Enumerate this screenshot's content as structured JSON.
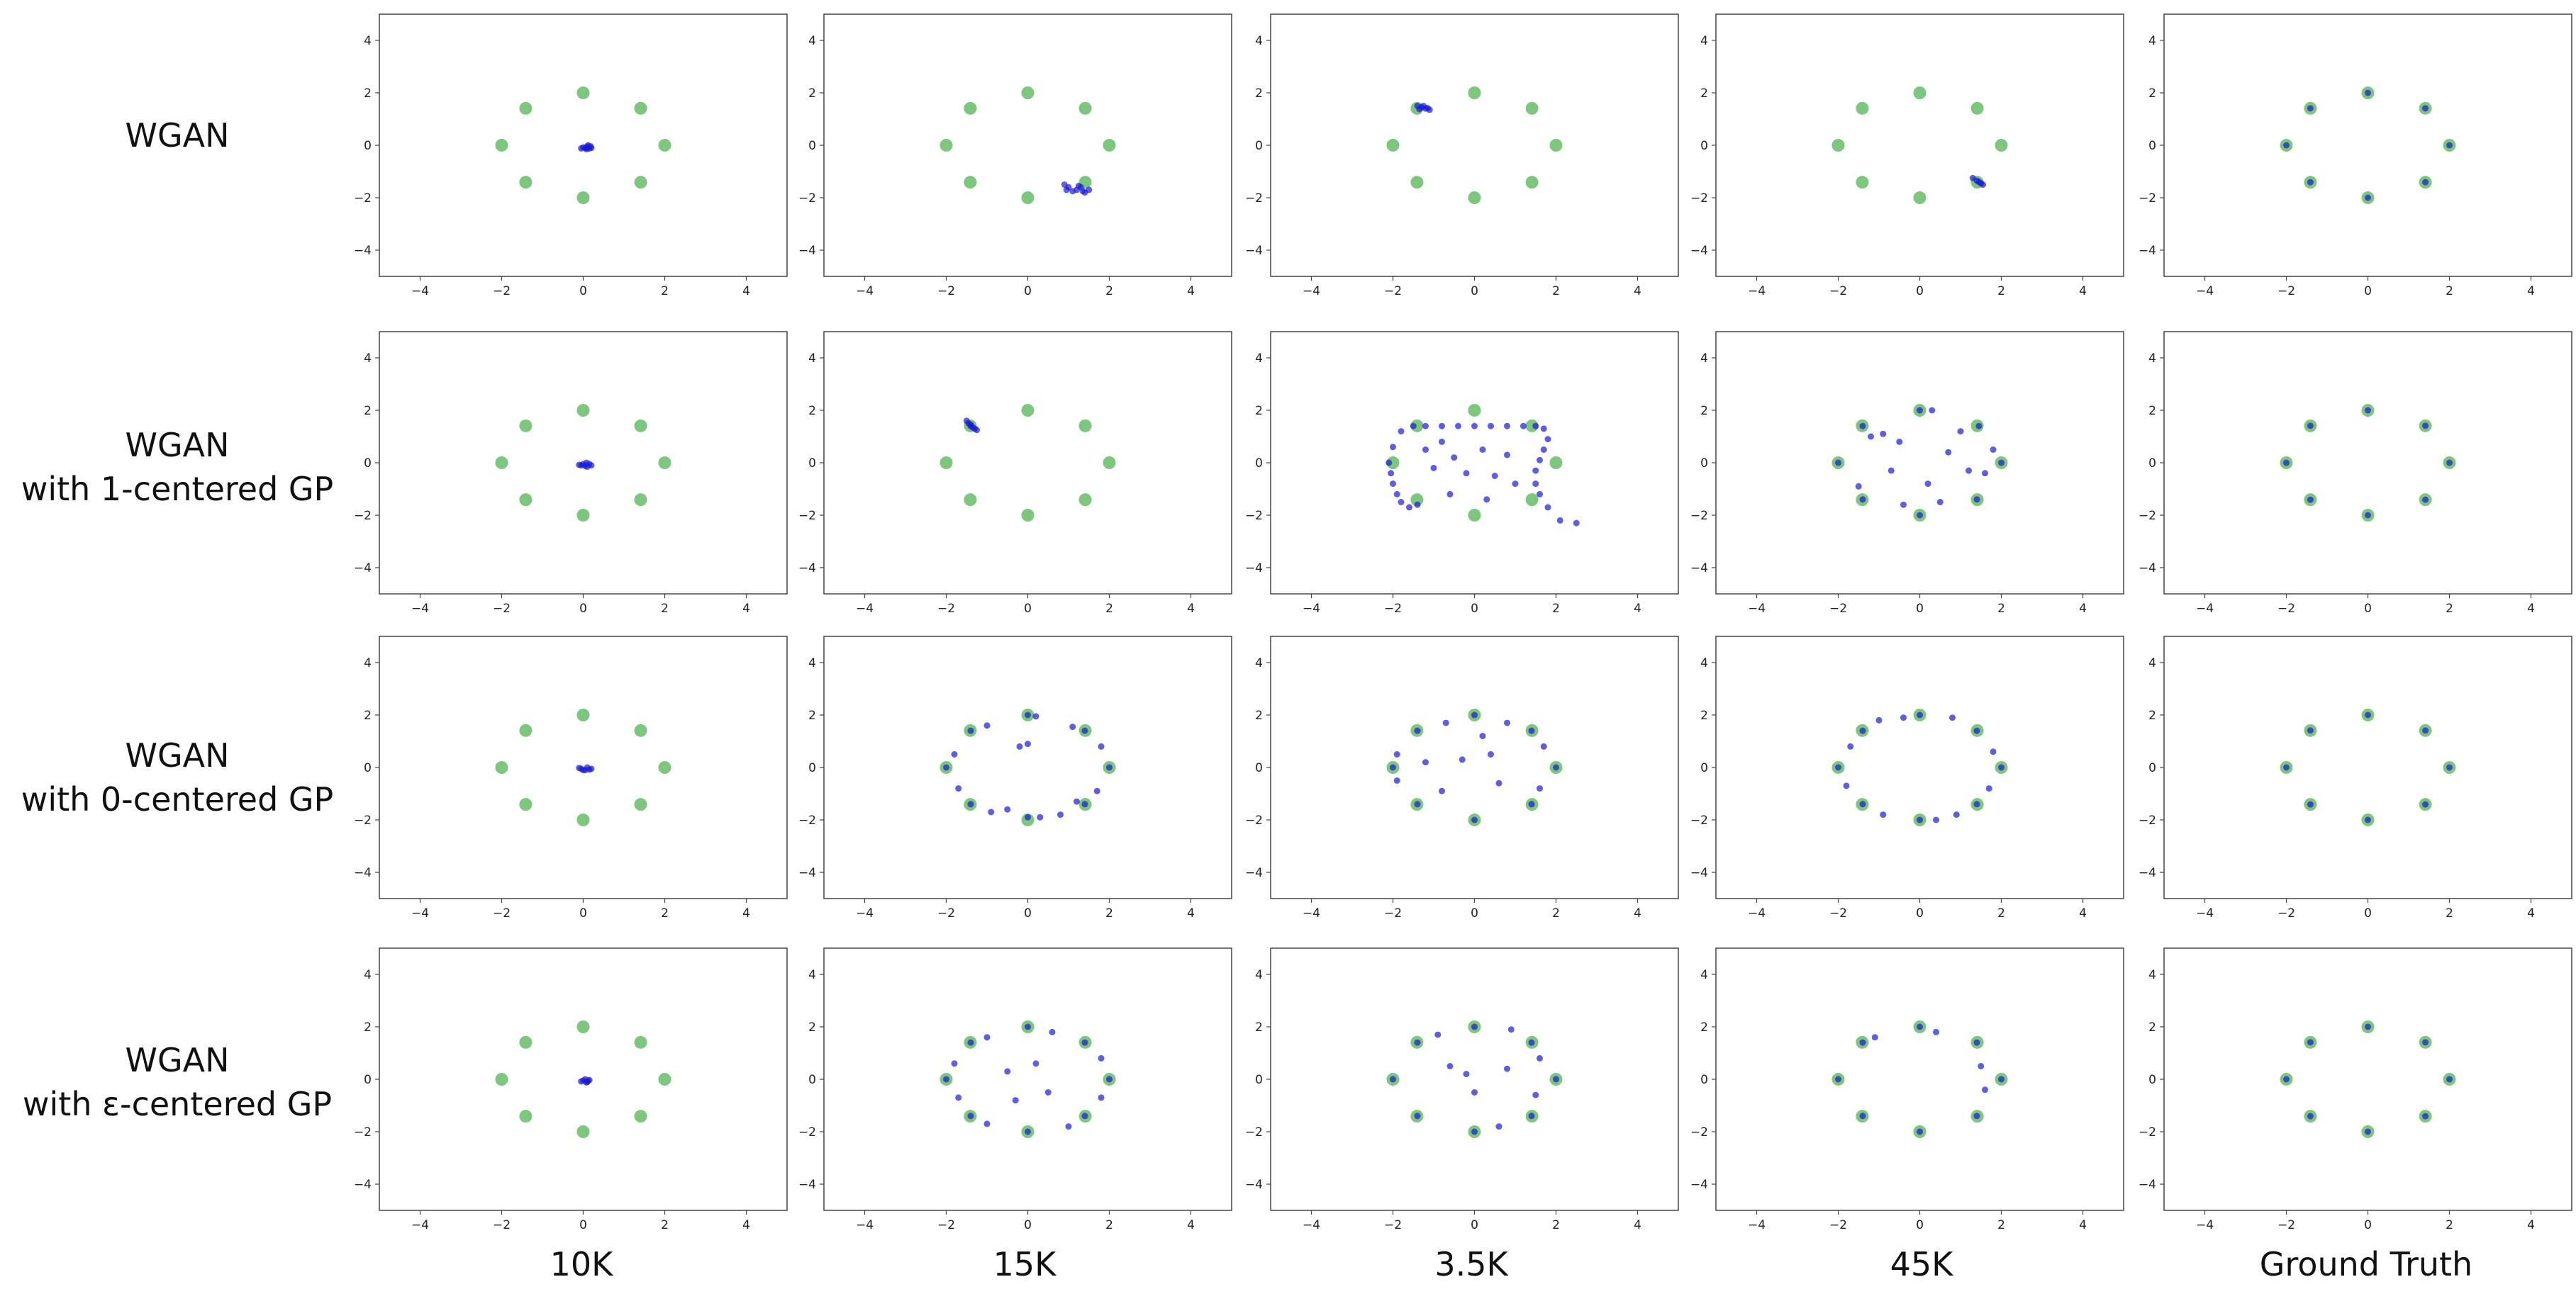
{
  "row_labels": [
    {
      "line1": "WGAN",
      "line2": ""
    },
    {
      "line1": "WGAN",
      "line2": "with 1-centered GP"
    },
    {
      "line1": "WGAN",
      "line2": "with 0-centered GP"
    },
    {
      "line1": "WGAN",
      "line2": "with ε-centered GP"
    }
  ],
  "column_labels": [
    "10K",
    "15K",
    "3.5K",
    "45K",
    "Ground Truth"
  ],
  "colors": {
    "real": "#5cb85c",
    "generated": "#1a1ad6",
    "axes": "#444444"
  },
  "chart_data": {
    "type": "scatter",
    "grid": false,
    "xlim": [
      -5,
      5
    ],
    "ylim": [
      -5,
      5
    ],
    "xticks": [
      -4,
      -2,
      0,
      2,
      4
    ],
    "yticks": [
      -4,
      -2,
      0,
      2,
      4
    ],
    "real_modes": [
      [
        2,
        0
      ],
      [
        1.41,
        1.41
      ],
      [
        0,
        2
      ],
      [
        -1.41,
        1.41
      ],
      [
        -2,
        0
      ],
      [
        -1.41,
        -1.41
      ],
      [
        0,
        -2
      ],
      [
        1.41,
        -1.41
      ]
    ],
    "panels": [
      [
        {
          "generated": [
            [
              0.05,
              -0.1
            ],
            [
              0.1,
              -0.05
            ],
            [
              0.15,
              -0.12
            ],
            [
              0,
              -0.08
            ],
            [
              0.2,
              -0.1
            ],
            [
              0.08,
              -0.15
            ],
            [
              0.12,
              0
            ],
            [
              -0.05,
              -0.12
            ],
            [
              0.18,
              -0.04
            ],
            [
              0.1,
              -0.1
            ]
          ]
        },
        {
          "generated": [
            [
              0.9,
              -1.5
            ],
            [
              1.0,
              -1.6
            ],
            [
              1.2,
              -1.7
            ],
            [
              1.3,
              -1.6
            ],
            [
              1.1,
              -1.75
            ],
            [
              1.4,
              -1.8
            ],
            [
              1.5,
              -1.7
            ],
            [
              0.95,
              -1.7
            ],
            [
              1.25,
              -1.55
            ],
            [
              1.35,
              -1.75
            ]
          ]
        },
        {
          "generated": [
            [
              -1.4,
              1.5
            ],
            [
              -1.3,
              1.45
            ],
            [
              -1.2,
              1.4
            ],
            [
              -1.1,
              1.35
            ],
            [
              -1.35,
              1.38
            ],
            [
              -1.25,
              1.5
            ],
            [
              -1.15,
              1.42
            ]
          ]
        },
        {
          "generated": [
            [
              1.3,
              -1.25
            ],
            [
              1.4,
              -1.35
            ],
            [
              1.5,
              -1.45
            ],
            [
              1.55,
              -1.5
            ],
            [
              1.45,
              -1.4
            ]
          ]
        },
        {
          "generated": [
            [
              2,
              0
            ],
            [
              1.41,
              1.41
            ],
            [
              0,
              2
            ],
            [
              -1.41,
              1.41
            ],
            [
              -2,
              0
            ],
            [
              -1.41,
              -1.41
            ],
            [
              0,
              -2
            ],
            [
              1.41,
              -1.41
            ]
          ]
        }
      ],
      [
        {
          "generated": [
            [
              -0.05,
              -0.1
            ],
            [
              0.05,
              -0.12
            ],
            [
              0.15,
              -0.05
            ],
            [
              0,
              -0.05
            ],
            [
              0.1,
              -0.15
            ],
            [
              -0.1,
              -0.08
            ],
            [
              0.2,
              -0.1
            ],
            [
              0.08,
              0
            ]
          ]
        },
        {
          "generated": [
            [
              -1.5,
              1.6
            ],
            [
              -1.45,
              1.5
            ],
            [
              -1.4,
              1.4
            ],
            [
              -1.35,
              1.35
            ],
            [
              -1.3,
              1.3
            ],
            [
              -1.25,
              1.25
            ],
            [
              -1.4,
              1.45
            ]
          ]
        },
        {
          "generated": [
            [
              -1.8,
              1.2
            ],
            [
              -1.5,
              1.4
            ],
            [
              -1.2,
              1.4
            ],
            [
              -0.8,
              1.4
            ],
            [
              -0.4,
              1.4
            ],
            [
              0,
              1.4
            ],
            [
              0.4,
              1.4
            ],
            [
              0.8,
              1.4
            ],
            [
              1.2,
              1.4
            ],
            [
              1.5,
              1.4
            ],
            [
              1.7,
              1.3
            ],
            [
              1.8,
              0.9
            ],
            [
              1.7,
              0.5
            ],
            [
              1.6,
              0.1
            ],
            [
              1.5,
              -0.3
            ],
            [
              1.5,
              -0.8
            ],
            [
              1.6,
              -1.2
            ],
            [
              1.8,
              -1.7
            ],
            [
              2.1,
              -2.2
            ],
            [
              2.5,
              -2.3
            ],
            [
              -2.0,
              0.6
            ],
            [
              -2.1,
              0
            ],
            [
              -2.05,
              -0.4
            ],
            [
              -2.0,
              -0.8
            ],
            [
              -1.9,
              -1.2
            ],
            [
              -1.8,
              -1.5
            ],
            [
              -1.6,
              -1.7
            ],
            [
              -1.4,
              -1.6
            ],
            [
              -1.2,
              0.5
            ],
            [
              -0.8,
              0.8
            ],
            [
              -0.5,
              0.2
            ],
            [
              -0.2,
              -0.4
            ],
            [
              0.2,
              0.5
            ],
            [
              0.5,
              -0.5
            ],
            [
              0.8,
              0.3
            ],
            [
              -0.6,
              -1.2
            ],
            [
              0.3,
              -1.4
            ],
            [
              1.0,
              -0.8
            ],
            [
              -1.0,
              -0.2
            ]
          ]
        },
        {
          "generated": [
            [
              2,
              0
            ],
            [
              1.45,
              1.4
            ],
            [
              0,
              2
            ],
            [
              -1.4,
              1.4
            ],
            [
              -2,
              0
            ],
            [
              -1.4,
              -1.4
            ],
            [
              0,
              -2
            ],
            [
              1.4,
              -1.4
            ],
            [
              0.3,
              2.0
            ],
            [
              1.0,
              1.2
            ],
            [
              -0.9,
              1.1
            ],
            [
              1.8,
              0.5
            ],
            [
              1.6,
              -0.4
            ],
            [
              0.5,
              -1.5
            ],
            [
              -0.4,
              -1.6
            ],
            [
              -1.5,
              -0.9
            ],
            [
              -1.2,
              1.0
            ],
            [
              -0.5,
              0.8
            ],
            [
              0.7,
              0.4
            ],
            [
              0.2,
              -0.8
            ],
            [
              -0.7,
              -0.3
            ],
            [
              1.2,
              -0.3
            ]
          ]
        },
        {
          "generated": [
            [
              2,
              0
            ],
            [
              1.41,
              1.41
            ],
            [
              0,
              2
            ],
            [
              -1.41,
              1.41
            ],
            [
              -2,
              0
            ],
            [
              -1.41,
              -1.41
            ],
            [
              0,
              -2
            ],
            [
              1.41,
              -1.41
            ]
          ]
        }
      ],
      [
        {
          "generated": [
            [
              -0.05,
              -0.05
            ],
            [
              0.05,
              -0.1
            ],
            [
              0.1,
              0
            ],
            [
              0.15,
              -0.08
            ],
            [
              -0.1,
              -0.02
            ],
            [
              0,
              -0.1
            ],
            [
              0.2,
              -0.05
            ]
          ]
        },
        {
          "generated": [
            [
              2,
              0
            ],
            [
              1.4,
              1.4
            ],
            [
              0,
              2
            ],
            [
              -1.4,
              1.4
            ],
            [
              -2,
              0
            ],
            [
              -1.4,
              -1.4
            ],
            [
              0,
              -1.9
            ],
            [
              1.4,
              -1.4
            ],
            [
              0.2,
              1.95
            ],
            [
              1.1,
              1.55
            ],
            [
              -1.0,
              1.6
            ],
            [
              -1.8,
              0.5
            ],
            [
              -1.7,
              -0.8
            ],
            [
              -0.9,
              -1.7
            ],
            [
              0.8,
              -1.8
            ],
            [
              1.7,
              -0.9
            ],
            [
              1.8,
              0.8
            ],
            [
              -0.2,
              0.8
            ],
            [
              0,
              0.9
            ],
            [
              -0.5,
              -1.6
            ],
            [
              0.3,
              -1.9
            ],
            [
              1.2,
              -1.3
            ]
          ]
        },
        {
          "generated": [
            [
              2,
              0
            ],
            [
              1.4,
              1.4
            ],
            [
              0,
              2
            ],
            [
              -1.4,
              1.4
            ],
            [
              -2,
              0
            ],
            [
              -1.4,
              -1.4
            ],
            [
              0,
              -2
            ],
            [
              1.4,
              -1.4
            ],
            [
              0.8,
              1.7
            ],
            [
              -0.7,
              1.7
            ],
            [
              -1.9,
              0.5
            ],
            [
              -1.9,
              -0.5
            ],
            [
              1.7,
              0.8
            ],
            [
              1.6,
              -0.8
            ],
            [
              0.4,
              0.5
            ],
            [
              -0.3,
              0.3
            ],
            [
              0.6,
              -0.6
            ],
            [
              -0.8,
              -0.9
            ],
            [
              0.2,
              1.2
            ],
            [
              -1.2,
              0.2
            ]
          ]
        },
        {
          "generated": [
            [
              2,
              0
            ],
            [
              1.4,
              1.4
            ],
            [
              0,
              2
            ],
            [
              -1.4,
              1.4
            ],
            [
              -2,
              0
            ],
            [
              -1.4,
              -1.4
            ],
            [
              0,
              -2
            ],
            [
              1.4,
              -1.4
            ],
            [
              -1.0,
              1.8
            ],
            [
              0.8,
              1.9
            ],
            [
              1.8,
              0.6
            ],
            [
              1.7,
              -0.8
            ],
            [
              0.9,
              -1.8
            ],
            [
              -0.9,
              -1.8
            ],
            [
              -1.8,
              -0.7
            ],
            [
              -1.7,
              0.8
            ],
            [
              -0.4,
              1.9
            ],
            [
              0.4,
              -2.0
            ]
          ]
        },
        {
          "generated": [
            [
              2,
              0
            ],
            [
              1.41,
              1.41
            ],
            [
              0,
              2
            ],
            [
              -1.41,
              1.41
            ],
            [
              -2,
              0
            ],
            [
              -1.41,
              -1.41
            ],
            [
              0,
              -2
            ],
            [
              1.41,
              -1.41
            ]
          ]
        }
      ],
      [
        {
          "generated": [
            [
              0,
              -0.05
            ],
            [
              0.1,
              -0.1
            ],
            [
              0.05,
              0
            ],
            [
              -0.05,
              -0.08
            ],
            [
              0.15,
              -0.03
            ],
            [
              0.08,
              -0.12
            ],
            [
              0.12,
              -0.06
            ]
          ]
        },
        {
          "generated": [
            [
              2,
              0
            ],
            [
              1.4,
              1.4
            ],
            [
              0,
              2
            ],
            [
              -1.4,
              1.4
            ],
            [
              -2,
              0
            ],
            [
              -1.4,
              -1.4
            ],
            [
              0,
              -2
            ],
            [
              1.4,
              -1.4
            ],
            [
              0.6,
              1.8
            ],
            [
              -1.0,
              1.6
            ],
            [
              -1.8,
              0.6
            ],
            [
              -1.7,
              -0.7
            ],
            [
              -1.0,
              -1.7
            ],
            [
              1.0,
              -1.8
            ],
            [
              1.8,
              -0.7
            ],
            [
              1.8,
              0.8
            ],
            [
              -0.5,
              0.3
            ],
            [
              0.2,
              0.6
            ],
            [
              -0.3,
              -0.8
            ],
            [
              0.5,
              -0.5
            ]
          ]
        },
        {
          "generated": [
            [
              2,
              0
            ],
            [
              1.4,
              1.4
            ],
            [
              0,
              2
            ],
            [
              -1.4,
              1.4
            ],
            [
              -2,
              0
            ],
            [
              -1.4,
              -1.4
            ],
            [
              0,
              -2
            ],
            [
              1.4,
              -1.4
            ],
            [
              -0.9,
              1.7
            ],
            [
              0.9,
              1.9
            ],
            [
              1.6,
              0.8
            ],
            [
              1.5,
              -0.6
            ],
            [
              0.6,
              -1.8
            ],
            [
              -0.6,
              0.5
            ],
            [
              0,
              -0.5
            ],
            [
              -0.2,
              0.2
            ],
            [
              0.8,
              0.4
            ]
          ]
        },
        {
          "generated": [
            [
              2,
              0
            ],
            [
              1.4,
              1.4
            ],
            [
              0,
              2
            ],
            [
              -1.4,
              1.4
            ],
            [
              -2,
              0
            ],
            [
              -1.4,
              -1.4
            ],
            [
              0,
              -2
            ],
            [
              1.4,
              -1.4
            ],
            [
              -1.1,
              1.6
            ],
            [
              0.4,
              1.8
            ],
            [
              1.6,
              -0.4
            ],
            [
              1.5,
              0.5
            ]
          ]
        },
        {
          "generated": [
            [
              2,
              0
            ],
            [
              1.41,
              1.41
            ],
            [
              0,
              2
            ],
            [
              -1.41,
              1.41
            ],
            [
              -2,
              0
            ],
            [
              -1.41,
              -1.41
            ],
            [
              0,
              -2
            ],
            [
              1.41,
              -1.41
            ]
          ]
        }
      ]
    ]
  }
}
